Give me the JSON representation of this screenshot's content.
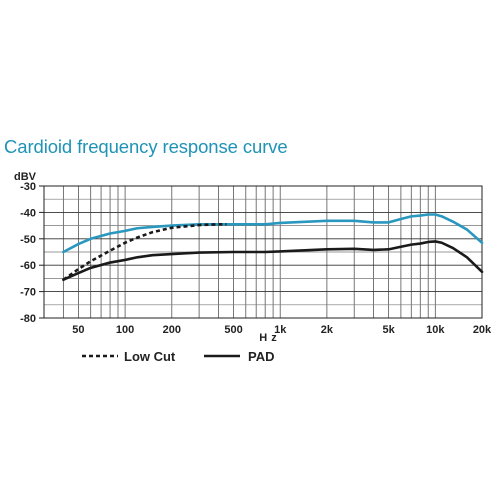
{
  "chart_data": {
    "type": "line",
    "title": "Cardioid frequency response curve",
    "ylabel": "dBV",
    "xlabel": "Hz",
    "x_scale": "log",
    "xlim": [
      30,
      20000
    ],
    "ylim": [
      -80,
      -30
    ],
    "x_ticks": [
      {
        "label": "50",
        "value": 50
      },
      {
        "label": "100",
        "value": 100
      },
      {
        "label": "200",
        "value": 200
      },
      {
        "label": "500",
        "value": 500
      },
      {
        "label": "1k",
        "value": 1000
      },
      {
        "label": "2k",
        "value": 2000
      },
      {
        "label": "5k",
        "value": 5000
      },
      {
        "label": "10k",
        "value": 10000
      },
      {
        "label": "20k",
        "value": 20000
      }
    ],
    "y_ticks": [
      {
        "label": "-30",
        "value": -30
      },
      {
        "label": "-40",
        "value": -40
      },
      {
        "label": "-50",
        "value": -50
      },
      {
        "label": "-60",
        "value": -60
      },
      {
        "label": "-70",
        "value": -70
      },
      {
        "label": "-80",
        "value": -80
      }
    ],
    "grid": true,
    "legend_position": "bottom",
    "legend": [
      {
        "label": "Low Cut",
        "style": "dotted",
        "color": "#1a1a1a"
      },
      {
        "label": "PAD",
        "style": "solid",
        "color": "#1a1a1a"
      }
    ],
    "series": [
      {
        "color": "#2a97bf",
        "style": "solid",
        "points": [
          [
            40,
            -55
          ],
          [
            50,
            -52
          ],
          [
            60,
            -50
          ],
          [
            80,
            -48
          ],
          [
            100,
            -47
          ],
          [
            120,
            -46
          ],
          [
            150,
            -45.5
          ],
          [
            200,
            -45
          ],
          [
            300,
            -44.5
          ],
          [
            500,
            -44.5
          ],
          [
            800,
            -44.5
          ],
          [
            1000,
            -44
          ],
          [
            1500,
            -43.5
          ],
          [
            2000,
            -43.2
          ],
          [
            3000,
            -43.2
          ],
          [
            4000,
            -43.8
          ],
          [
            5000,
            -43.8
          ],
          [
            6000,
            -42.5
          ],
          [
            7000,
            -41.5
          ],
          [
            8000,
            -41.2
          ],
          [
            9000,
            -40.8
          ],
          [
            10000,
            -40.8
          ],
          [
            11000,
            -41.5
          ],
          [
            13000,
            -43.5
          ],
          [
            16000,
            -46.5
          ],
          [
            20000,
            -51.5
          ]
        ]
      },
      {
        "color": "#1a1a1a",
        "style": "solid",
        "points": [
          [
            40,
            -65.5
          ],
          [
            50,
            -63
          ],
          [
            60,
            -61
          ],
          [
            80,
            -59
          ],
          [
            100,
            -58
          ],
          [
            120,
            -57
          ],
          [
            150,
            -56.2
          ],
          [
            200,
            -55.8
          ],
          [
            300,
            -55.2
          ],
          [
            500,
            -55
          ],
          [
            800,
            -55
          ],
          [
            1000,
            -54.8
          ],
          [
            1500,
            -54.3
          ],
          [
            2000,
            -54
          ],
          [
            3000,
            -53.8
          ],
          [
            4000,
            -54.2
          ],
          [
            5000,
            -54
          ],
          [
            6000,
            -53
          ],
          [
            7000,
            -52.2
          ],
          [
            8000,
            -51.8
          ],
          [
            9000,
            -51.2
          ],
          [
            10000,
            -51
          ],
          [
            11000,
            -51.5
          ],
          [
            13000,
            -53.5
          ],
          [
            16000,
            -57
          ],
          [
            20000,
            -62.5
          ]
        ]
      },
      {
        "color": "#1a1a1a",
        "style": "dotted",
        "points": [
          [
            40,
            -65.5
          ],
          [
            50,
            -61.5
          ],
          [
            60,
            -58.5
          ],
          [
            80,
            -54.5
          ],
          [
            100,
            -51.5
          ],
          [
            120,
            -49.5
          ],
          [
            150,
            -47.5
          ],
          [
            200,
            -45.8
          ],
          [
            300,
            -44.8
          ],
          [
            400,
            -44.5
          ],
          [
            450,
            -44.5
          ]
        ]
      }
    ]
  }
}
